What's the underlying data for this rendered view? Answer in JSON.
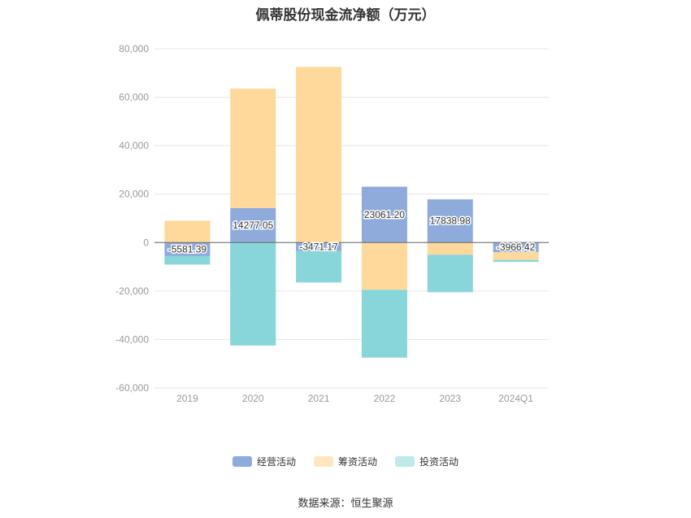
{
  "title": "佩蒂股份现金流净额（万元）",
  "source": "数据来源：恒生聚源",
  "chart_data": {
    "type": "bar",
    "stacked": true,
    "categories": [
      "2019",
      "2020",
      "2021",
      "2022",
      "2023",
      "2024Q1"
    ],
    "ylim": [
      -60000,
      80000
    ],
    "yticks": [
      -60000,
      -40000,
      -20000,
      0,
      20000,
      40000,
      60000,
      80000
    ],
    "ytick_labels": [
      "-60,000",
      "-40,000",
      "-20,000",
      "0",
      "20,000",
      "40,000",
      "60,000",
      "80,000"
    ],
    "grid": true,
    "legend_position": "bottom",
    "series": [
      {
        "name": "经营活动",
        "color": "#8eabdc",
        "values": [
          -5581.39,
          14277.05,
          -3471.17,
          23061.2,
          17838.98,
          -3966.42
        ]
      },
      {
        "name": "筹资活动",
        "color": "#fed99b",
        "values": [
          9000,
          49300,
          72500,
          -19500,
          -5000,
          -3200
        ]
      },
      {
        "name": "投资活动",
        "color": "#88d6d9",
        "values": [
          -3500,
          -42500,
          -13000,
          -28000,
          -15500,
          -800
        ]
      }
    ],
    "data_labels": [
      "-5581.39",
      "14277.05",
      "-3471.17",
      "23061.20",
      "17838.98",
      "-3966.42"
    ]
  }
}
